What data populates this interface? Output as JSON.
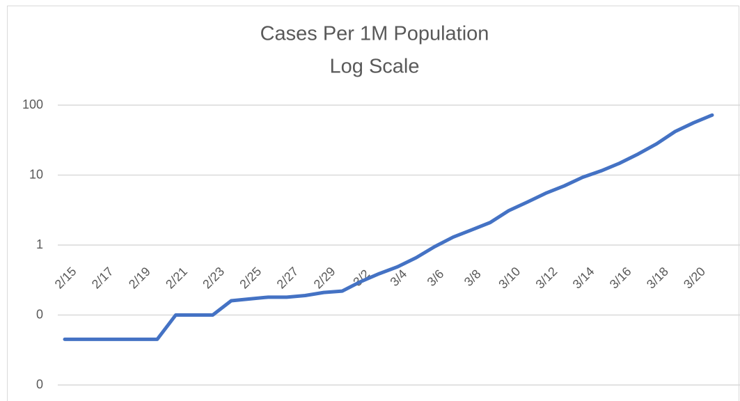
{
  "chart_data": {
    "type": "line",
    "title": "Cases Per 1M Population",
    "subtitle": "Log Scale",
    "categories": [
      "2/15",
      null,
      "2/17",
      null,
      "2/19",
      null,
      "2/21",
      null,
      "2/23",
      null,
      "2/25",
      null,
      "2/27",
      null,
      "2/29",
      null,
      "3/2",
      null,
      "3/4",
      null,
      "3/6",
      null,
      "3/8",
      null,
      "3/10",
      null,
      "3/12",
      null,
      "3/14",
      null,
      "3/16",
      null,
      "3/18",
      null,
      "3/20",
      null
    ],
    "series": [
      {
        "name": "Cases Per 1M Population",
        "color": "#4472c4",
        "values": [
          0.045,
          0.045,
          0.045,
          0.045,
          0.045,
          0.045,
          0.1,
          0.1,
          0.1,
          0.16,
          0.17,
          0.18,
          0.18,
          0.19,
          0.21,
          0.22,
          0.3,
          0.39,
          0.49,
          0.66,
          0.95,
          1.3,
          1.65,
          2.1,
          3.1,
          4.1,
          5.5,
          7,
          9.3,
          11.5,
          14.8,
          20,
          28,
          42,
          56,
          72
        ]
      }
    ],
    "log_scale": true,
    "grid": true,
    "ylim": [
      0.01,
      100
    ],
    "yticks": [
      {
        "value": 0.01,
        "label": "0"
      },
      {
        "value": 0.1,
        "label": "0"
      },
      1,
      10,
      100
    ]
  }
}
